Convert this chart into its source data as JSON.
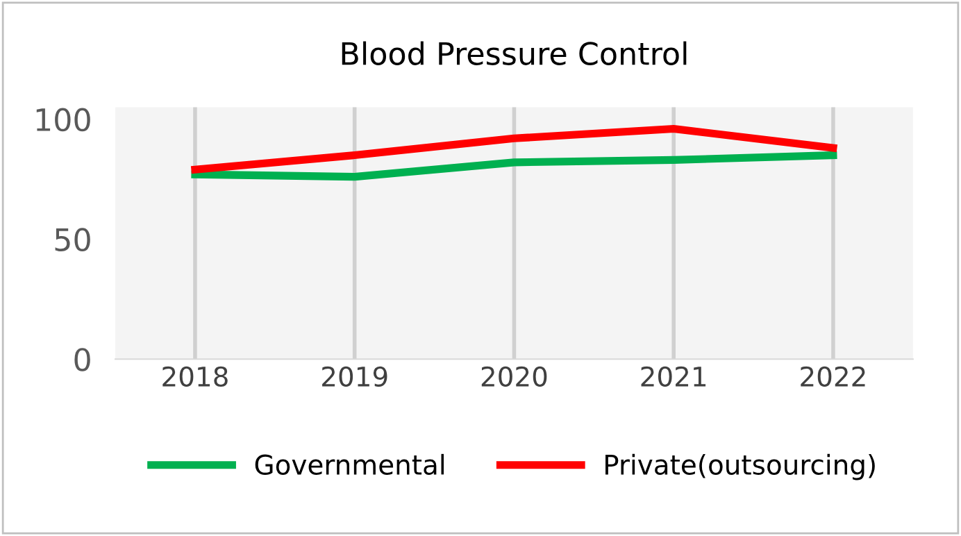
{
  "chart_data": {
    "type": "line",
    "title": "Blood Pressure Control",
    "categories": [
      "2018",
      "2019",
      "2020",
      "2021",
      "2022"
    ],
    "series": [
      {
        "name": "Governmental",
        "color": "#00b050",
        "values": [
          77,
          76,
          82,
          83,
          85
        ]
      },
      {
        "name": "Private(outsourcing)",
        "color": "#ff0000",
        "values": [
          79,
          85,
          92,
          96,
          88
        ]
      }
    ],
    "ylim": [
      0,
      105
    ],
    "yticks": [
      0,
      50,
      100
    ],
    "grid": "x",
    "legend": "bottom",
    "marker": "none",
    "line_style": "solid"
  }
}
